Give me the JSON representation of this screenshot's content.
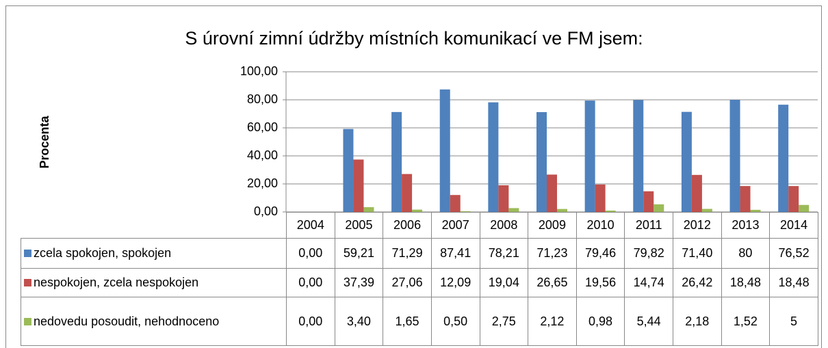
{
  "chart_data": {
    "type": "bar",
    "title": "S úrovní zimní údržby místních komunikací ve FM jsem:",
    "y_label": "Procenta",
    "categories": [
      "2004",
      "2005",
      "2006",
      "2007",
      "2008",
      "2009",
      "2010",
      "2011",
      "2012",
      "2013",
      "2014"
    ],
    "series": [
      {
        "name": "zcela spokojen, spokojen",
        "color": "#4f81bd",
        "values": [
          0,
          59.21,
          71.29,
          87.41,
          78.21,
          71.23,
          79.46,
          79.82,
          71.4,
          80,
          76.52
        ],
        "value_labels": [
          "0,00",
          "59,21",
          "71,29",
          "87,41",
          "78,21",
          "71,23",
          "79,46",
          "79,82",
          "71,40",
          "80",
          "76,52"
        ]
      },
      {
        "name": "nespokojen, zcela nespokojen",
        "color": "#c0504d",
        "values": [
          0,
          37.39,
          27.06,
          12.09,
          19.04,
          26.65,
          19.56,
          14.74,
          26.42,
          18.48,
          18.48
        ],
        "value_labels": [
          "0,00",
          "37,39",
          "27,06",
          "12,09",
          "19,04",
          "26,65",
          "19,56",
          "14,74",
          "26,42",
          "18,48",
          "18,48"
        ]
      },
      {
        "name": "nedovedu posoudit, nehodnoceno",
        "color": "#9bbb59",
        "values": [
          0,
          3.4,
          1.65,
          0.5,
          2.75,
          2.12,
          0.98,
          5.44,
          2.18,
          1.52,
          5
        ],
        "value_labels": [
          "0,00",
          "3,40",
          "1,65",
          "0,50",
          "2,75",
          "2,12",
          "0,98",
          "5,44",
          "2,18",
          "1,52",
          "5"
        ]
      }
    ],
    "ylim": [
      0,
      100
    ],
    "yticks": [
      {
        "value": 0,
        "label": "0,00"
      },
      {
        "value": 20,
        "label": "20,00"
      },
      {
        "value": 40,
        "label": "40,00"
      },
      {
        "value": 60,
        "label": "60,00"
      },
      {
        "value": 80,
        "label": "80,00"
      },
      {
        "value": 100,
        "label": "100,00"
      }
    ],
    "grid": true
  }
}
